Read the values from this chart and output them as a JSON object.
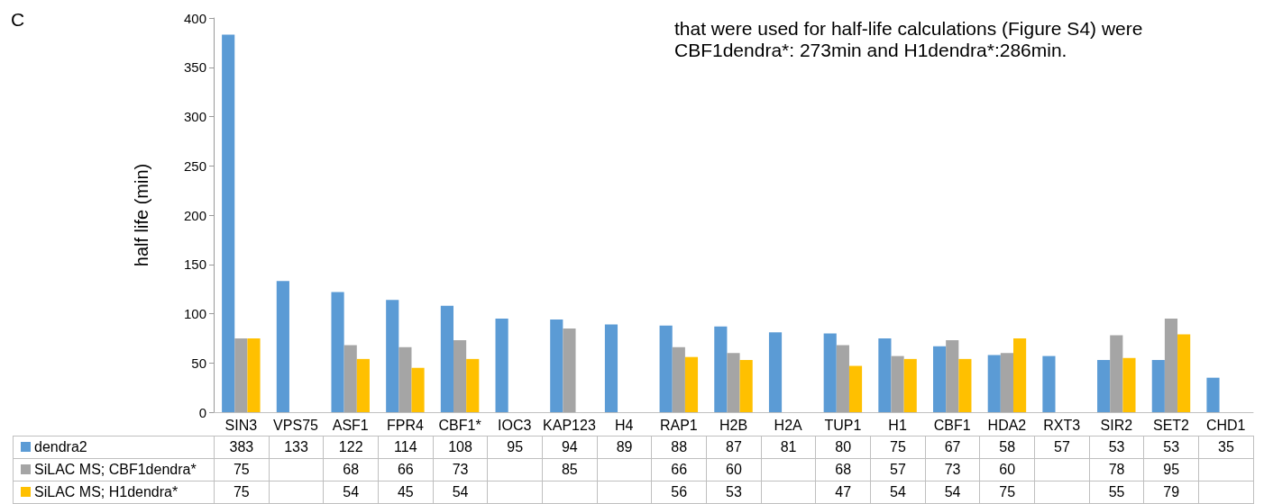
{
  "chart_data": {
    "type": "bar",
    "categories": [
      "SIN3",
      "VPS75",
      "ASF1",
      "FPR4",
      "CBF1*",
      "IOC3",
      "KAP123",
      "H4",
      "RAP1",
      "H2B",
      "H2A",
      "TUP1",
      "H1",
      "CBF1",
      "HDA2",
      "RXT3",
      "SIR2",
      "SET2",
      "CHD1"
    ],
    "series": [
      {
        "name": "dendra2",
        "color": "#5b9bd5",
        "values": [
          383,
          133,
          122,
          114,
          108,
          95,
          94,
          89,
          88,
          87,
          81,
          80,
          75,
          67,
          58,
          57,
          53,
          53,
          35
        ]
      },
      {
        "name": "SiLAC MS; CBF1dendra*",
        "color": "#a5a5a5",
        "values": [
          75,
          null,
          68,
          66,
          73,
          null,
          85,
          null,
          66,
          60,
          null,
          68,
          57,
          73,
          60,
          null,
          78,
          95,
          null
        ]
      },
      {
        "name": "SiLAC MS; H1dendra*",
        "color": "#ffc000",
        "values": [
          75,
          null,
          54,
          45,
          54,
          null,
          null,
          null,
          56,
          53,
          null,
          47,
          54,
          54,
          75,
          null,
          55,
          79,
          null
        ]
      }
    ],
    "ylabel": "half life (min)",
    "ylim": [
      0,
      400
    ],
    "yticks": [
      0,
      50,
      100,
      150,
      200,
      250,
      300,
      350,
      400
    ],
    "grid": false,
    "legend": "bottom left",
    "data_labels": true,
    "annotations": [
      "C",
      "that were used for half-life calculations (Figure S4) were CBF1dendra*: 273min and H1dendra*:286min."
    ]
  }
}
